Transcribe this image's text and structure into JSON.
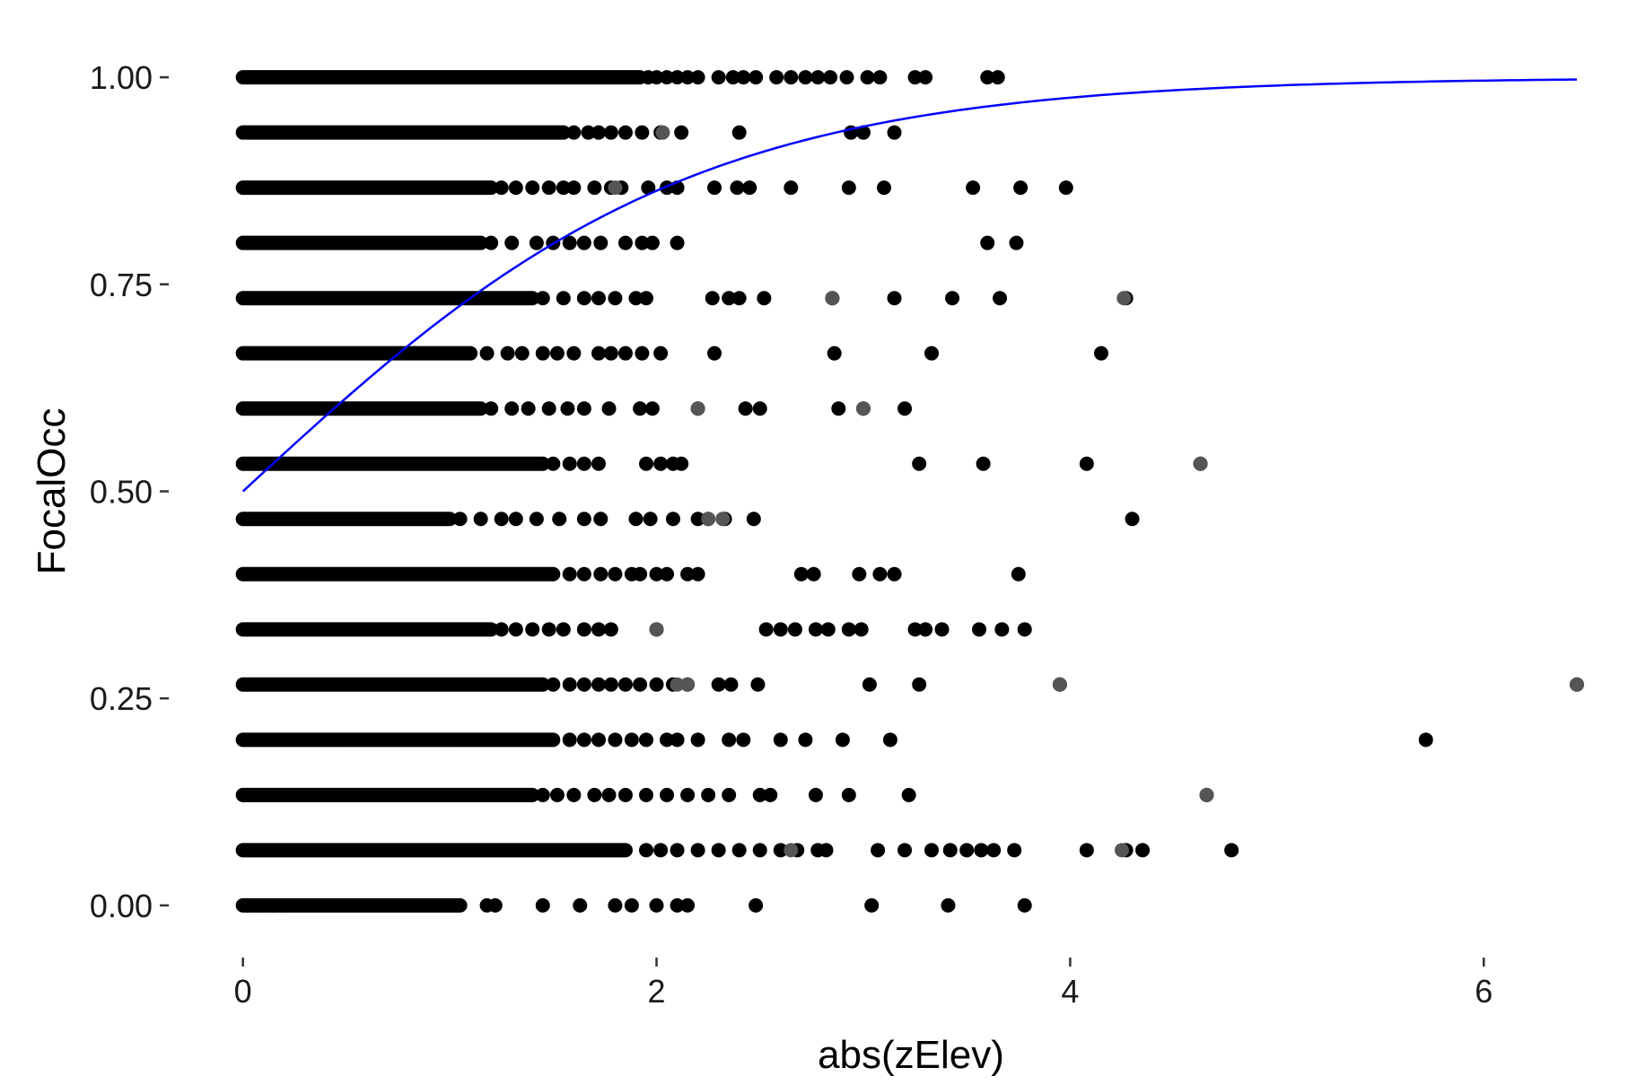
{
  "chart_data": {
    "type": "scatter",
    "title": "",
    "xlabel": "abs(zElev)",
    "ylabel": "FocalOcc",
    "xlim": [
      -0.35,
      6.55
    ],
    "ylim": [
      -0.05,
      1.05
    ],
    "x_ticks": [
      0,
      2,
      4,
      6
    ],
    "x_tick_labels": [
      "0",
      "2",
      "4",
      "6"
    ],
    "y_ticks": [
      0,
      0.25,
      0.5,
      0.75,
      1
    ],
    "y_tick_labels": [
      "0.00",
      "0.25",
      "0.50",
      "0.75",
      "1.00"
    ],
    "grid": false,
    "point_color": "#000000",
    "line_color": "#0000ff",
    "points": {
      "description_levels": "y levels are k/15",
      "rows": [
        {
          "y": 1.0,
          "dense_to": 1.92,
          "x": [
            1.96,
            2.0,
            2.05,
            2.1,
            2.15,
            2.2,
            2.3,
            2.37,
            2.42,
            2.48,
            2.58,
            2.65,
            2.72,
            2.78,
            2.84,
            2.92,
            3.02,
            3.08,
            3.25,
            3.3,
            3.6,
            3.65
          ]
        },
        {
          "y": 0.9333,
          "dense_to": 1.55,
          "x": [
            1.6,
            1.67,
            1.72,
            1.78,
            1.85,
            1.93,
            2.02,
            2.12,
            2.4,
            2.94,
            3.0,
            3.15
          ]
        },
        {
          "y": 0.8667,
          "dense_to": 1.2,
          "x": [
            1.25,
            1.32,
            1.4,
            1.48,
            1.55,
            1.6,
            1.7,
            1.78,
            1.83,
            1.96,
            2.05,
            2.1,
            2.28,
            2.39,
            2.45,
            2.65,
            2.93,
            3.1,
            3.53,
            3.76,
            3.98
          ]
        },
        {
          "y": 0.8,
          "dense_to": 1.15,
          "x": [
            1.2,
            1.3,
            1.42,
            1.5,
            1.58,
            1.65,
            1.73,
            1.85,
            1.93,
            1.98,
            2.1,
            3.6,
            3.74
          ]
        },
        {
          "y": 0.7333,
          "dense_to": 1.4,
          "x": [
            1.45,
            1.55,
            1.65,
            1.72,
            1.8,
            1.9,
            1.95,
            2.27,
            2.35,
            2.4,
            2.52,
            2.85,
            3.15,
            3.43,
            3.66,
            4.27
          ]
        },
        {
          "y": 0.6667,
          "dense_to": 1.1,
          "x": [
            1.18,
            1.28,
            1.35,
            1.45,
            1.52,
            1.6,
            1.72,
            1.78,
            1.85,
            1.93,
            2.02,
            2.28,
            2.86,
            3.33,
            4.15
          ]
        },
        {
          "y": 0.6,
          "dense_to": 1.15,
          "x": [
            1.2,
            1.3,
            1.38,
            1.48,
            1.57,
            1.65,
            1.77,
            1.92,
            1.98,
            2.2,
            2.43,
            2.5,
            2.88,
            3.0,
            3.2
          ]
        },
        {
          "y": 0.5333,
          "dense_to": 1.45,
          "x": [
            1.5,
            1.58,
            1.65,
            1.72,
            1.95,
            2.02,
            2.08,
            2.12,
            3.27,
            3.58,
            4.08,
            4.63
          ]
        },
        {
          "y": 0.4667,
          "dense_to": 1.0,
          "x": [
            1.05,
            1.15,
            1.25,
            1.32,
            1.42,
            1.53,
            1.65,
            1.73,
            1.9,
            1.97,
            2.08,
            2.2,
            2.25,
            2.33,
            2.47,
            4.3
          ]
        },
        {
          "y": 0.4,
          "dense_to": 1.5,
          "x": [
            1.58,
            1.65,
            1.73,
            1.8,
            1.88,
            1.92,
            2.0,
            2.05,
            2.15,
            2.2,
            2.7,
            2.76,
            2.98,
            3.08,
            3.15,
            3.75
          ]
        },
        {
          "y": 0.3333,
          "dense_to": 1.2,
          "x": [
            1.25,
            1.32,
            1.4,
            1.48,
            1.55,
            1.65,
            1.72,
            1.78,
            2.0,
            2.53,
            2.6,
            2.67,
            2.77,
            2.83,
            2.93,
            2.99,
            3.25,
            3.3,
            3.38,
            3.56,
            3.67,
            3.78
          ]
        },
        {
          "y": 0.2667,
          "dense_to": 1.45,
          "x": [
            1.5,
            1.58,
            1.65,
            1.72,
            1.78,
            1.85,
            1.92,
            2.0,
            2.08,
            2.15,
            2.3,
            2.36,
            2.49,
            3.03,
            3.27,
            3.95,
            6.45
          ]
        },
        {
          "y": 0.2,
          "dense_to": 1.5,
          "x": [
            1.58,
            1.65,
            1.72,
            1.8,
            1.88,
            1.95,
            2.05,
            2.1,
            2.2,
            2.35,
            2.42,
            2.6,
            2.72,
            2.9,
            3.13,
            5.72
          ]
        },
        {
          "y": 0.1333,
          "dense_to": 1.4,
          "x": [
            1.45,
            1.52,
            1.6,
            1.7,
            1.77,
            1.85,
            1.95,
            2.05,
            2.15,
            2.25,
            2.35,
            2.5,
            2.55,
            2.77,
            2.93,
            3.22,
            4.66
          ]
        },
        {
          "y": 0.0667,
          "dense_to": 1.85,
          "x": [
            1.95,
            2.02,
            2.1,
            2.2,
            2.3,
            2.4,
            2.5,
            2.6,
            2.68,
            2.78,
            2.82,
            3.07,
            3.2,
            3.33,
            3.42,
            3.5,
            3.57,
            3.63,
            3.73,
            4.08,
            4.27,
            4.35,
            4.78
          ]
        },
        {
          "y": 0.0,
          "dense_to": 1.05,
          "x": [
            0.02,
            0.1,
            0.15,
            0.2,
            1.18,
            1.22,
            1.45,
            1.63,
            1.8,
            1.88,
            2.0,
            2.1,
            2.15,
            2.48,
            3.04,
            3.41,
            3.78
          ]
        }
      ]
    },
    "grey_points": [
      {
        "x": 2.03,
        "y": 0.9333
      },
      {
        "x": 1.8,
        "y": 0.8667
      },
      {
        "x": 2.85,
        "y": 0.7333
      },
      {
        "x": 4.26,
        "y": 0.7333
      },
      {
        "x": 2.2,
        "y": 0.6
      },
      {
        "x": 3.0,
        "y": 0.6
      },
      {
        "x": 4.63,
        "y": 0.5333
      },
      {
        "x": 2.25,
        "y": 0.4667
      },
      {
        "x": 2.32,
        "y": 0.4667
      },
      {
        "x": 2.0,
        "y": 0.3333
      },
      {
        "x": 2.1,
        "y": 0.2667
      },
      {
        "x": 2.15,
        "y": 0.2667
      },
      {
        "x": 3.95,
        "y": 0.2667
      },
      {
        "x": 6.45,
        "y": 0.2667
      },
      {
        "x": 4.66,
        "y": 0.1333
      },
      {
        "x": 2.65,
        "y": 0.0667
      },
      {
        "x": 4.25,
        "y": 0.0667
      }
    ],
    "fit_line": {
      "type": "logistic",
      "x_range": [
        0,
        6.45
      ],
      "curve": [
        [
          0,
          0.5
        ],
        [
          0.5,
          0.62
        ],
        [
          1.0,
          0.725
        ],
        [
          1.5,
          0.812
        ],
        [
          2.0,
          0.88
        ],
        [
          2.5,
          0.925
        ],
        [
          3.0,
          0.953
        ],
        [
          3.5,
          0.972
        ],
        [
          4.0,
          0.984
        ],
        [
          5.0,
          0.995
        ],
        [
          6.45,
          1.0
        ]
      ]
    }
  }
}
